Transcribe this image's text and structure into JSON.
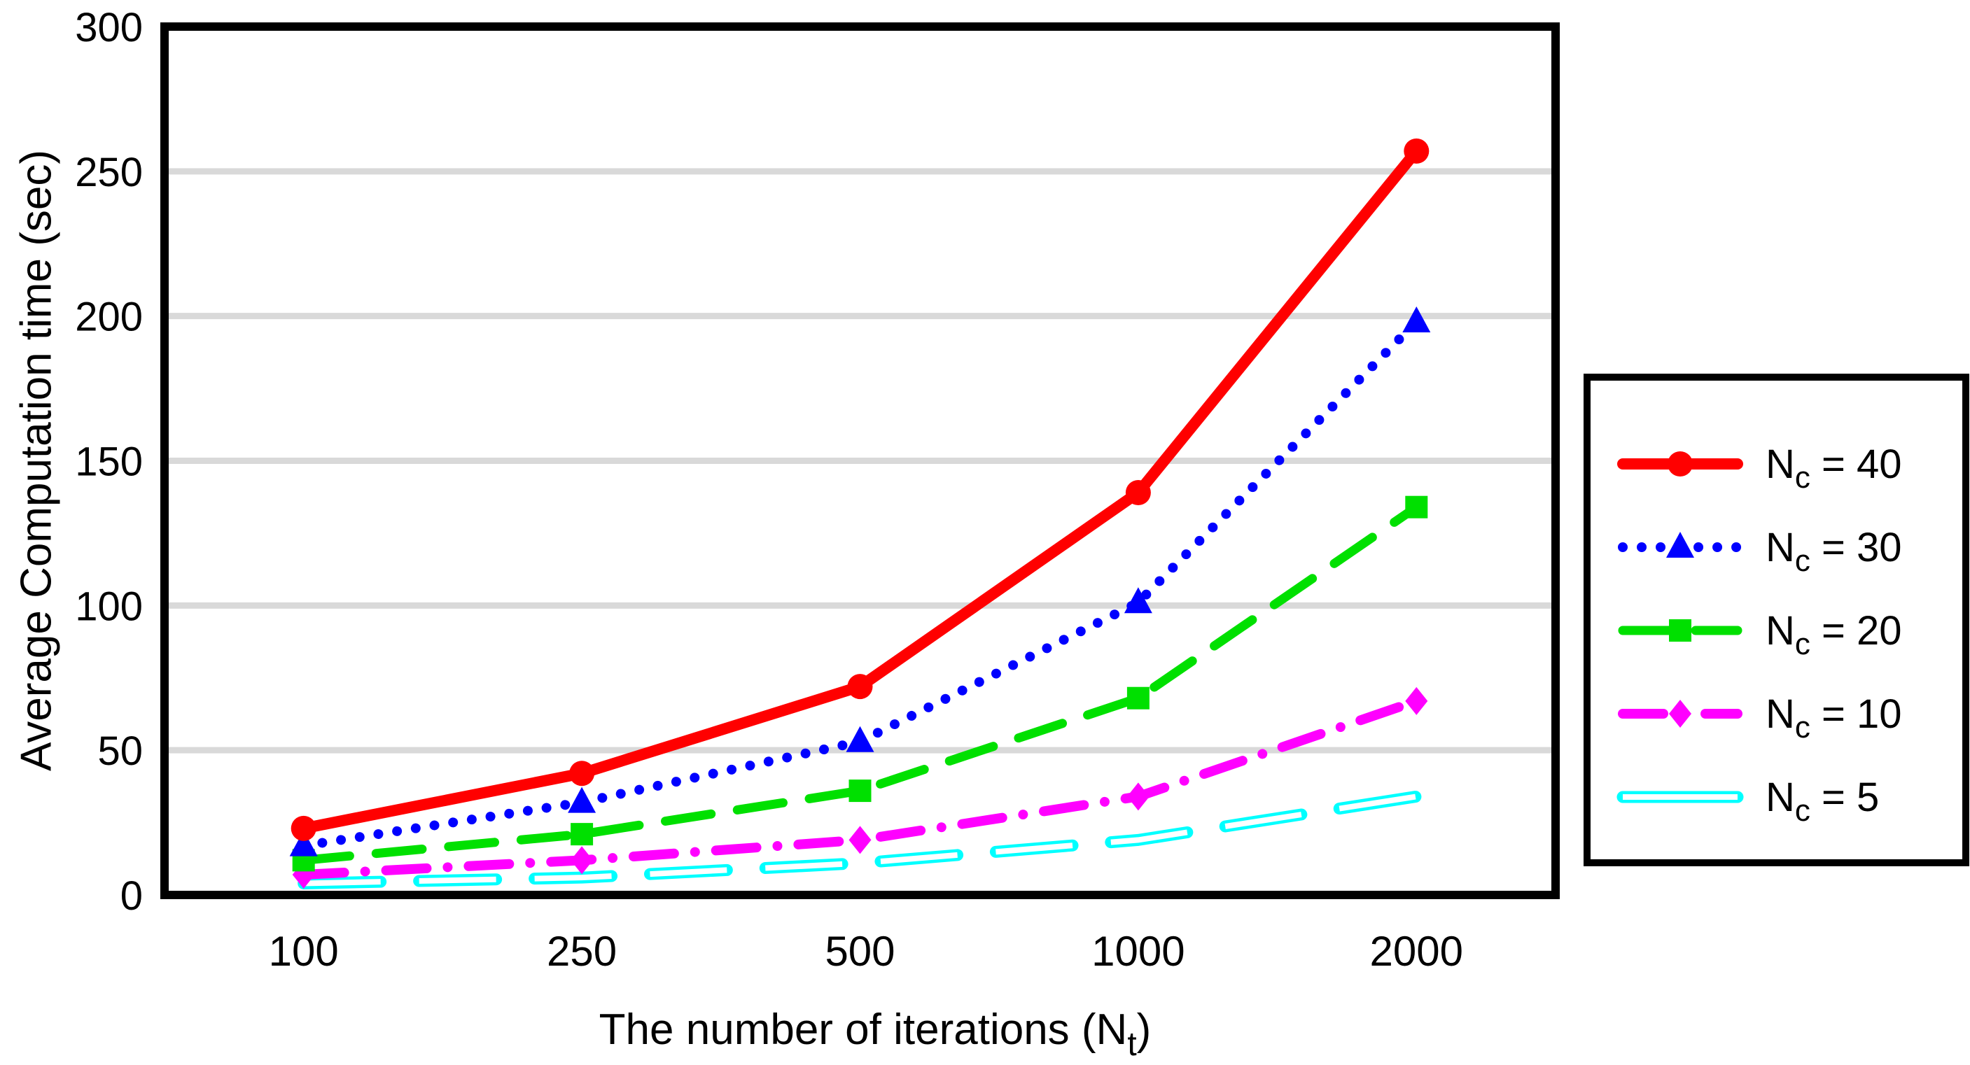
{
  "chart_data": {
    "type": "line",
    "title": "",
    "ylabel": "Average Computation time (sec)",
    "xlabel": "The number of iterations (Nt)",
    "xlabel_parts": {
      "pre": "The number of iterations (N",
      "sub": "t",
      "post": ")"
    },
    "categories": [
      "100",
      "250",
      "500",
      "1000",
      "2000"
    ],
    "y_ticks": [
      0,
      50,
      100,
      150,
      200,
      250,
      300
    ],
    "y_tick_labels": [
      "0",
      "50",
      "100",
      "150",
      "200",
      "250",
      "300"
    ],
    "ylim": [
      0,
      300
    ],
    "grid": "horizontal-only",
    "legend_position": "right-outside",
    "colors": {
      "background": "#ffffff",
      "frame": "#000000",
      "gridline": "#d9d9d9",
      "text": "#000000"
    },
    "series": [
      {
        "id": "nc-40",
        "name": "Nc = 40",
        "label_pre": "N",
        "label_sub": "c",
        "label_post": " = 40",
        "color": "#ff0000",
        "line_style": "solid",
        "marker": "circle",
        "values": [
          23,
          42,
          72,
          139,
          257
        ]
      },
      {
        "id": "nc-30",
        "name": "Nc = 30",
        "label_pre": "N",
        "label_sub": "c",
        "label_post": " = 30",
        "color": "#0000ff",
        "line_style": "dotted",
        "marker": "triangle",
        "values": [
          17,
          32,
          53,
          101,
          198
        ]
      },
      {
        "id": "nc-20",
        "name": "Nc = 20",
        "label_pre": "N",
        "label_sub": "c",
        "label_post": " = 20",
        "color": "#00e000",
        "line_style": "dashed",
        "marker": "square",
        "values": [
          12,
          21,
          36,
          68,
          134
        ]
      },
      {
        "id": "nc-10",
        "name": "Nc = 10",
        "label_pre": "N",
        "label_sub": "c",
        "label_post": " = 10",
        "color": "#ff00ff",
        "line_style": "dash-dot",
        "marker": "diamond",
        "values": [
          7,
          12,
          19,
          34,
          67
        ]
      },
      {
        "id": "nc-5",
        "name": "Nc = 5",
        "label_pre": "N",
        "label_sub": "c",
        "label_post": " = 5",
        "color": "#00ffff",
        "line_style": "tube-dash",
        "marker": "none",
        "values": [
          4,
          6,
          11,
          19,
          34
        ]
      }
    ]
  }
}
